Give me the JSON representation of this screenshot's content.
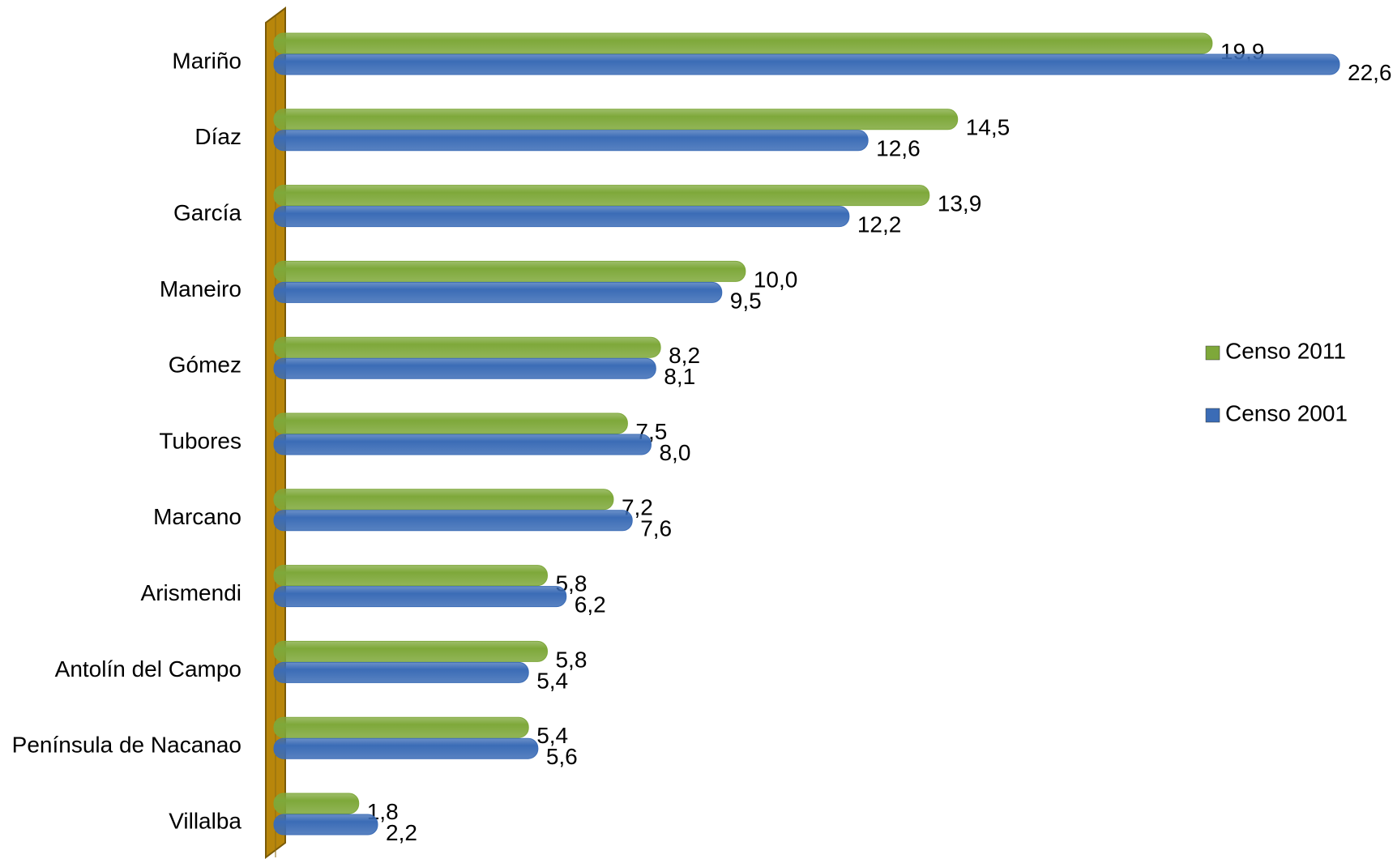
{
  "chart_data": {
    "type": "hbar",
    "categories": [
      "Mariño",
      "Díaz",
      "García",
      "Maneiro",
      "Gómez",
      "Tubores",
      "Marcano",
      "Arismendi",
      "Antolín del Campo",
      "Península de Nacanao",
      "Villalba"
    ],
    "series": [
      {
        "name": "Censo 2011",
        "color": "#7ea83a",
        "values": [
          19.9,
          14.5,
          13.9,
          10.0,
          8.2,
          7.5,
          7.2,
          5.8,
          5.8,
          5.4,
          1.8
        ],
        "value_labels": [
          "19,9",
          "14,5",
          "13,9",
          "10,0",
          "8,2",
          "7,5",
          "7,2",
          "5,8",
          "5,8",
          "5,4",
          "1,8"
        ]
      },
      {
        "name": "Censo 2001",
        "color": "#3b6cb6",
        "values": [
          22.6,
          12.6,
          12.2,
          9.5,
          8.1,
          8.0,
          7.6,
          6.2,
          5.4,
          5.6,
          2.2
        ],
        "value_labels": [
          "22,6",
          "12,6",
          "12,2",
          "9,5",
          "8,1",
          "8,0",
          "7,6",
          "6,2",
          "5,4",
          "5,6",
          "2,2"
        ]
      }
    ],
    "legend": "right"
  }
}
